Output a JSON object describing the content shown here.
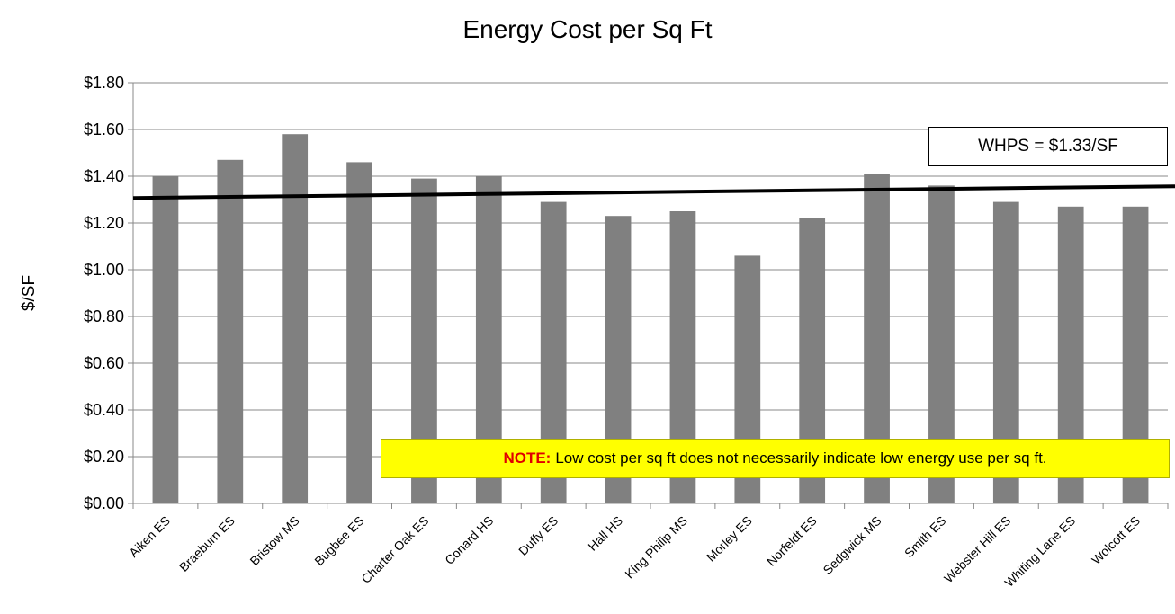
{
  "chart_data": {
    "type": "bar",
    "title": "Energy Cost per Sq Ft",
    "xlabel": "",
    "ylabel": "$/SF",
    "ylim": [
      0,
      1.8
    ],
    "yticks": [
      "$0.00",
      "$0.20",
      "$0.40",
      "$0.60",
      "$0.80",
      "$1.00",
      "$1.20",
      "$1.40",
      "$1.60",
      "$1.80"
    ],
    "grid": true,
    "categories": [
      "Aiken ES",
      "Braeburn ES",
      "Bristow MS",
      "Bugbee ES",
      "Charter Oak ES",
      "Conard HS",
      "Duffy ES",
      "Hall HS",
      "King Philip MS",
      "Morley ES",
      "Norfeldt ES",
      "Sedgwick MS",
      "Smith ES",
      "Webster Hill ES",
      "Whiting Lane ES",
      "Wolcott ES"
    ],
    "values": [
      1.4,
      1.47,
      1.58,
      1.46,
      1.39,
      1.4,
      1.29,
      1.23,
      1.25,
      1.06,
      1.22,
      1.41,
      1.36,
      1.29,
      1.27,
      1.27
    ],
    "reference_line": {
      "value": 1.33,
      "label": "WHPS = $1.33/SF"
    },
    "bar_color": "#808080",
    "note": {
      "label": "NOTE:",
      "text": "Low cost per sq ft does not necessarily indicate low energy use per sq ft.",
      "background": "#ffff00",
      "label_color": "#e00000"
    }
  }
}
